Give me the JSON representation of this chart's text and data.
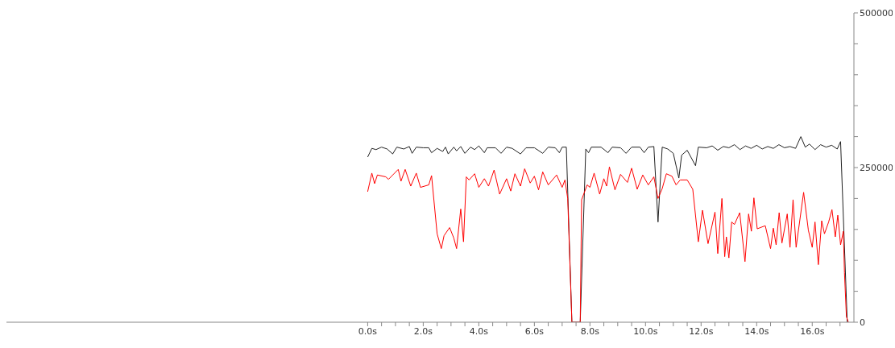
{
  "chart_data": {
    "type": "line",
    "xlim": [
      -13,
      17.5
    ],
    "ylim": [
      0,
      500000
    ],
    "xticks": [
      {
        "value": 0,
        "label": "0.0s"
      },
      {
        "value": 0.5,
        "label": null
      },
      {
        "value": 1,
        "label": null
      },
      {
        "value": 1.5,
        "label": null
      },
      {
        "value": 2,
        "label": "2.0s"
      },
      {
        "value": 2.5,
        "label": null
      },
      {
        "value": 3,
        "label": null
      },
      {
        "value": 3.5,
        "label": null
      },
      {
        "value": 4,
        "label": "4.0s"
      },
      {
        "value": 4.5,
        "label": null
      },
      {
        "value": 5,
        "label": null
      },
      {
        "value": 5.5,
        "label": null
      },
      {
        "value": 6,
        "label": "6.0s"
      },
      {
        "value": 6.5,
        "label": null
      },
      {
        "value": 7,
        "label": null
      },
      {
        "value": 7.5,
        "label": null
      },
      {
        "value": 8,
        "label": "8.0s"
      },
      {
        "value": 8.5,
        "label": null
      },
      {
        "value": 9,
        "label": null
      },
      {
        "value": 9.5,
        "label": null
      },
      {
        "value": 10,
        "label": "10.0s"
      },
      {
        "value": 10.5,
        "label": null
      },
      {
        "value": 11,
        "label": null
      },
      {
        "value": 11.5,
        "label": null
      },
      {
        "value": 12,
        "label": "12.0s"
      },
      {
        "value": 12.5,
        "label": null
      },
      {
        "value": 13,
        "label": null
      },
      {
        "value": 13.5,
        "label": null
      },
      {
        "value": 14,
        "label": "14.0s"
      },
      {
        "value": 14.5,
        "label": null
      },
      {
        "value": 15,
        "label": null
      },
      {
        "value": 15.5,
        "label": null
      },
      {
        "value": 16,
        "label": "16.0s"
      },
      {
        "value": 16.5,
        "label": null
      },
      {
        "value": 17,
        "label": null
      }
    ],
    "yticks": [
      0,
      {
        "value": 50000,
        "label": null
      },
      {
        "value": 100000,
        "label": null
      },
      {
        "value": 150000,
        "label": null
      },
      {
        "value": 200000,
        "label": null
      },
      250000,
      {
        "value": 300000,
        "label": null
      },
      {
        "value": 350000,
        "label": null
      },
      {
        "value": 400000,
        "label": null
      },
      {
        "value": 450000,
        "label": null
      },
      500000
    ],
    "grid": false,
    "legend": false,
    "marker": "none",
    "line_style": "solid",
    "series": [
      {
        "color": "#222222",
        "x": [
          0,
          0.15,
          0.3,
          0.5,
          0.7,
          0.9,
          1.05,
          1.3,
          1.5,
          1.6,
          1.75,
          2.0,
          2.2,
          2.3,
          2.5,
          2.7,
          2.8,
          2.9,
          3.1,
          3.2,
          3.35,
          3.5,
          3.7,
          3.85,
          4.0,
          4.2,
          4.3,
          4.6,
          4.8,
          5.0,
          5.2,
          5.5,
          5.7,
          6.0,
          6.3,
          6.5,
          6.75,
          6.9,
          7.0,
          7.15,
          7.35,
          7.65,
          7.85,
          7.95,
          8.05,
          8.4,
          8.65,
          8.8,
          9.1,
          9.3,
          9.5,
          9.8,
          9.95,
          10.1,
          10.3,
          10.45,
          10.6,
          10.8,
          11.0,
          11.2,
          11.3,
          11.5,
          11.8,
          11.9,
          12.2,
          12.4,
          12.6,
          12.8,
          13.0,
          13.2,
          13.4,
          13.6,
          13.8,
          14.0,
          14.2,
          14.4,
          14.6,
          14.8,
          15.0,
          15.2,
          15.4,
          15.59,
          15.75,
          15.9,
          16.1,
          16.3,
          16.5,
          16.7,
          16.9,
          17.02,
          17.26
        ],
        "values": [
          267000,
          281000,
          279000,
          283000,
          280000,
          272000,
          283000,
          280000,
          284000,
          273000,
          283000,
          282000,
          282000,
          274000,
          281000,
          276000,
          283000,
          272000,
          283000,
          277000,
          284000,
          273000,
          283000,
          279000,
          285000,
          274000,
          282000,
          282000,
          273000,
          283000,
          281000,
          272000,
          282000,
          282000,
          273000,
          283000,
          282000,
          274000,
          283000,
          283000,
          0,
          0,
          280000,
          274000,
          283000,
          283000,
          274000,
          283000,
          282000,
          273000,
          283000,
          283000,
          274000,
          283000,
          284000,
          162000,
          283000,
          280000,
          273000,
          233000,
          270000,
          278000,
          253000,
          283000,
          282000,
          285000,
          278000,
          284000,
          282000,
          287000,
          279000,
          285000,
          281000,
          286000,
          280000,
          284000,
          281000,
          287000,
          282000,
          284000,
          281000,
          300000,
          283000,
          288000,
          279000,
          287000,
          283000,
          286000,
          280000,
          292000,
          0
        ]
      },
      {
        "color": "#ff0000",
        "x": [
          0,
          0.15,
          0.25,
          0.35,
          0.65,
          0.75,
          1.1,
          1.2,
          1.35,
          1.55,
          1.75,
          1.9,
          2.2,
          2.3,
          2.5,
          2.65,
          2.75,
          2.95,
          3.1,
          3.2,
          3.35,
          3.45,
          3.55,
          3.65,
          3.85,
          4.0,
          4.2,
          4.35,
          4.55,
          4.75,
          5.0,
          5.15,
          5.3,
          5.5,
          5.65,
          5.85,
          6.0,
          6.15,
          6.3,
          6.5,
          6.8,
          7.0,
          7.1,
          7.2,
          7.35,
          7.65,
          7.7,
          7.9,
          8.0,
          8.15,
          8.35,
          8.5,
          8.6,
          8.7,
          8.9,
          9.1,
          9.35,
          9.5,
          9.7,
          9.9,
          10.1,
          10.3,
          10.45,
          10.6,
          10.75,
          10.95,
          11.1,
          11.25,
          11.5,
          11.7,
          11.9,
          12.05,
          12.25,
          12.5,
          12.6,
          12.75,
          12.85,
          12.91,
          13.0,
          13.1,
          13.2,
          13.39,
          13.58,
          13.71,
          13.81,
          13.9,
          14.02,
          14.31,
          14.5,
          14.6,
          14.7,
          14.81,
          14.91,
          15.1,
          15.2,
          15.31,
          15.42,
          15.69,
          15.86,
          16.0,
          16.1,
          16.22,
          16.34,
          16.44,
          16.59,
          16.71,
          16.83,
          16.92,
          17.02,
          17.12,
          17.16,
          17.23,
          17.3
        ],
        "values": [
          211000,
          241000,
          224000,
          238000,
          235000,
          231000,
          247000,
          228000,
          247000,
          220000,
          241000,
          218000,
          222000,
          237000,
          143000,
          119000,
          140000,
          153000,
          136000,
          119000,
          183000,
          130000,
          235000,
          230000,
          240000,
          218000,
          232000,
          220000,
          246000,
          207000,
          232000,
          212000,
          240000,
          220000,
          248000,
          225000,
          236000,
          214000,
          243000,
          222000,
          238000,
          218000,
          230000,
          200000,
          0,
          0,
          198000,
          222000,
          218000,
          241000,
          207000,
          232000,
          220000,
          251000,
          214000,
          239000,
          226000,
          249000,
          215000,
          238000,
          222000,
          235000,
          200000,
          216000,
          240000,
          236000,
          222000,
          230000,
          230000,
          215000,
          130000,
          181000,
          127000,
          178000,
          111000,
          200000,
          106000,
          138000,
          104000,
          162000,
          158000,
          177000,
          98000,
          175000,
          147000,
          201000,
          151000,
          156000,
          119000,
          152000,
          125000,
          177000,
          128000,
          175000,
          121000,
          198000,
          121000,
          210000,
          149000,
          121000,
          162000,
          93000,
          164000,
          143000,
          162000,
          182000,
          138000,
          173000,
          125000,
          147000,
          80000,
          9000,
          0
        ]
      }
    ]
  }
}
